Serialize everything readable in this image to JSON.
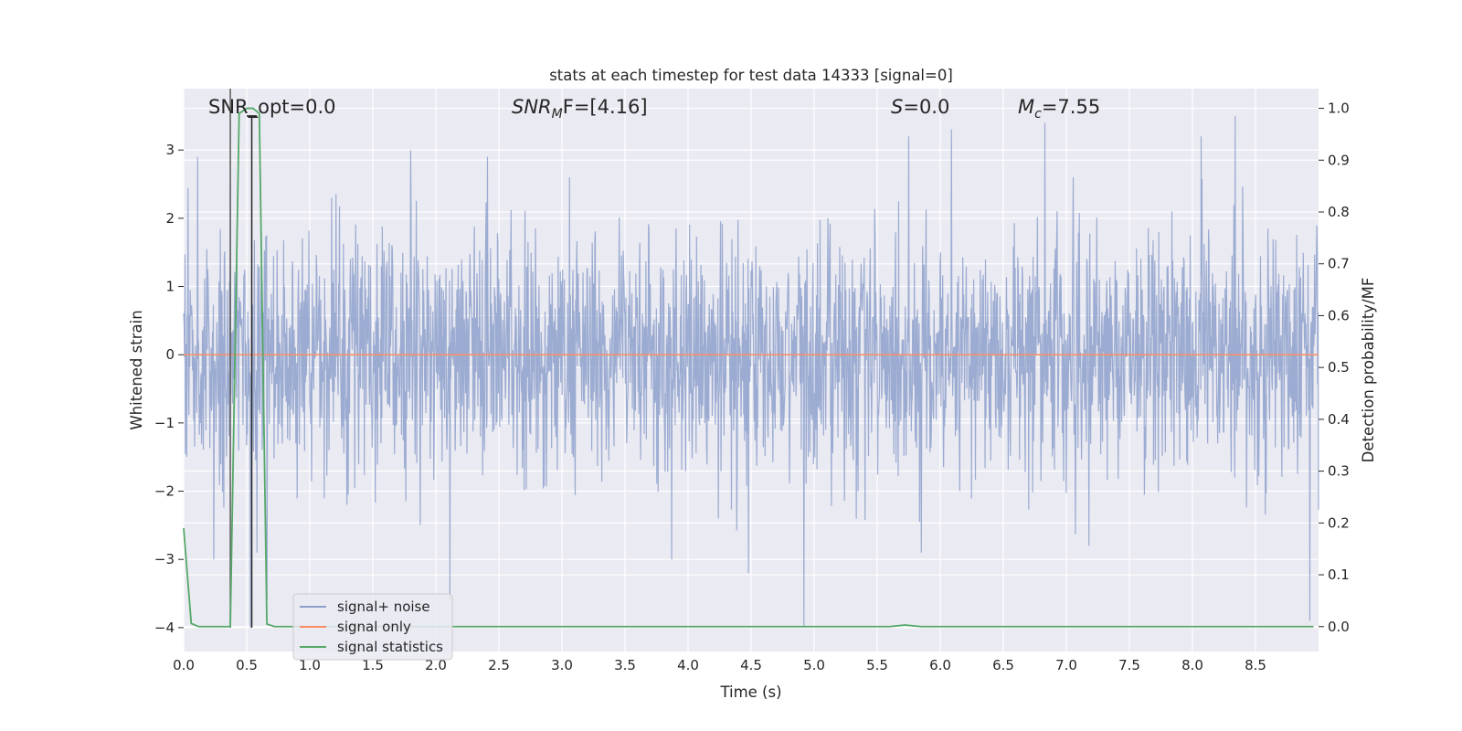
{
  "chart_data": {
    "type": "line",
    "title": "stats at each timestep for test data 14333 [signal=0]",
    "xlabel": "Time (s)",
    "ylabel_left": "Whitened strain",
    "ylabel_right": "Detection probability/MF",
    "xlim": [
      0.0,
      9.0
    ],
    "ylim_left": [
      -4.35,
      3.9
    ],
    "ylim_right": [
      -0.048,
      1.038
    ],
    "x_ticks": [
      "0.0",
      "0.5",
      "1.0",
      "1.5",
      "2.0",
      "2.5",
      "3.0",
      "3.5",
      "4.0",
      "4.5",
      "5.0",
      "5.5",
      "6.0",
      "6.5",
      "7.0",
      "7.5",
      "8.0",
      "8.5"
    ],
    "x_tick_values": [
      0.0,
      0.5,
      1.0,
      1.5,
      2.0,
      2.5,
      3.0,
      3.5,
      4.0,
      4.5,
      5.0,
      5.5,
      6.0,
      6.5,
      7.0,
      7.5,
      8.0,
      8.5
    ],
    "y_ticks_left": [
      "−4",
      "−3",
      "−2",
      "−1",
      "0",
      "1",
      "2",
      "3"
    ],
    "y_tick_values_left": [
      -4,
      -3,
      -2,
      -1,
      0,
      1,
      2,
      3
    ],
    "y_ticks_right": [
      "0.0",
      "0.1",
      "0.2",
      "0.3",
      "0.4",
      "0.5",
      "0.6",
      "0.7",
      "0.8",
      "0.9",
      "1.0"
    ],
    "y_tick_values_right": [
      0.0,
      0.1,
      0.2,
      0.3,
      0.4,
      0.5,
      0.6,
      0.7,
      0.8,
      0.9,
      1.0
    ],
    "grid": true,
    "legend_position": "lower-left",
    "annotations": {
      "snr_opt": "SNR_opt=0.0",
      "snr_mf_base": "SNR",
      "snr_mf_sub": "M",
      "snr_mf_rest": "F=[4.16]",
      "s_base": "S",
      "s_rest": "=0.0",
      "mc_base": "M",
      "mc_sub": "c",
      "mc_rest": "=7.55"
    },
    "series": [
      {
        "name": "signal+ noise",
        "color": "#8da0cb",
        "axis": "left",
        "note_values": "dense whitened noise, approx. gaussian sigma ~0.9, sampled 2048 Hz; notable spikes listed",
        "spikes": [
          [
            0.11,
            2.9
          ],
          [
            0.24,
            -3.0
          ],
          [
            0.37,
            2.5
          ],
          [
            0.53,
            -4.0
          ],
          [
            0.58,
            -2.9
          ],
          [
            0.66,
            -3.6
          ],
          [
            1.8,
            3.0
          ],
          [
            2.11,
            -3.6
          ],
          [
            2.41,
            2.9
          ],
          [
            3.87,
            -3.0
          ],
          [
            4.48,
            -3.2
          ],
          [
            4.92,
            -4.0
          ],
          [
            5.75,
            3.2
          ],
          [
            5.85,
            -2.9
          ],
          [
            6.09,
            3.3
          ],
          [
            6.83,
            3.4
          ],
          [
            7.18,
            -2.8
          ],
          [
            8.07,
            3.2
          ],
          [
            8.34,
            3.5
          ],
          [
            8.93,
            -3.9
          ]
        ]
      },
      {
        "name": "signal only",
        "color": "#fc8d62",
        "axis": "left",
        "x": [
          0.0,
          9.0
        ],
        "values": [
          0.0,
          0.0
        ]
      },
      {
        "name": "signal statistics",
        "color": "#55a868",
        "axis": "right",
        "x": [
          0.0,
          0.06,
          0.12,
          0.37,
          0.44,
          0.5,
          0.55,
          0.6,
          0.66,
          0.72,
          5.6,
          5.72,
          5.85,
          8.96
        ],
        "values": [
          0.19,
          0.006,
          0.0,
          0.0,
          0.99,
          1.0,
          1.0,
          0.99,
          0.005,
          0.0,
          0.0,
          0.003,
          0.0,
          0.0
        ]
      }
    ],
    "vertical_lines": [
      {
        "x": 0.37,
        "color": "#5a5a5a",
        "axis": "left",
        "y0": -4.0,
        "y1": 3.9
      },
      {
        "x": 0.54,
        "color": "#262626",
        "axis": "left",
        "y0": -4.0,
        "y1": 3.5
      }
    ]
  },
  "legend": {
    "items": [
      {
        "label": "signal+ noise",
        "color": "#8da0cb"
      },
      {
        "label": "signal only",
        "color": "#fc8d62"
      },
      {
        "label": "signal statistics",
        "color": "#55a868"
      }
    ]
  },
  "colors": {
    "plot_background": "#eaeaf2",
    "grid": "#ffffff",
    "text": "#262626"
  }
}
